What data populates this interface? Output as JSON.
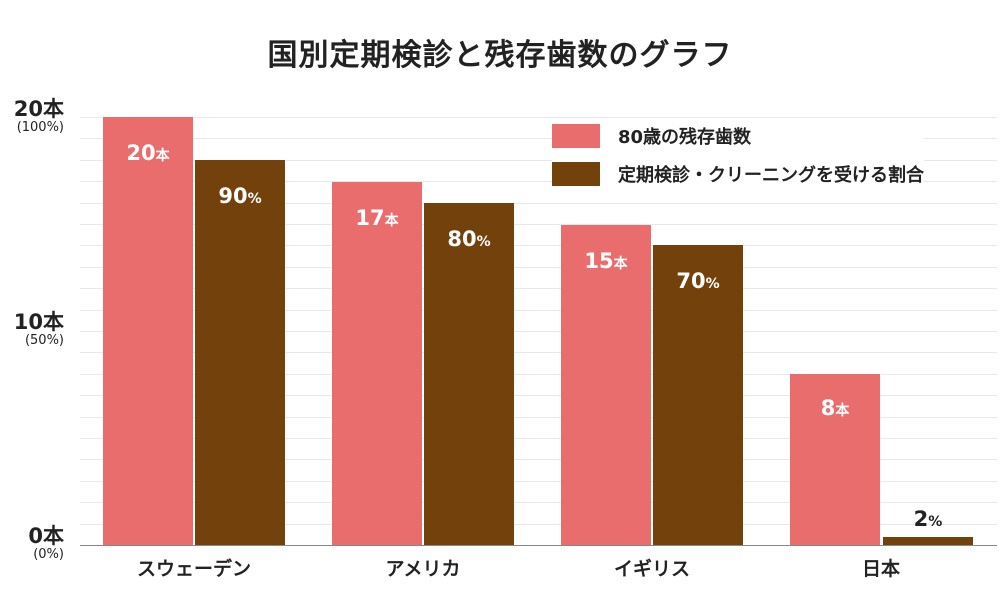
{
  "title": "国別定期検診と残存歯数のグラフ",
  "colors": {
    "teeth": "#e96d6c",
    "checkup": "#72410c",
    "grid": "#e9e9e9",
    "axis": "#888888"
  },
  "yaxis": {
    "ticks": [
      {
        "main": "20本",
        "sub": "(100%)"
      },
      {
        "main": "10本",
        "sub": "(50%)"
      },
      {
        "main": "0本",
        "sub": "(0%)"
      }
    ]
  },
  "legend": {
    "items": [
      {
        "label": "80歳の残存歯数"
      },
      {
        "label": "定期検診・クリーニングを受ける割合"
      }
    ]
  },
  "groups": [
    {
      "country": "スウェーデン",
      "teeth_value": "20",
      "teeth_unit": "本",
      "checkup_value": "90",
      "checkup_unit": "%"
    },
    {
      "country": "アメリカ",
      "teeth_value": "17",
      "teeth_unit": "本",
      "checkup_value": "80",
      "checkup_unit": "%"
    },
    {
      "country": "イギリス",
      "teeth_value": "15",
      "teeth_unit": "本",
      "checkup_value": "70",
      "checkup_unit": "%"
    },
    {
      "country": "日本",
      "teeth_value": "8",
      "teeth_unit": "本",
      "checkup_value": "2",
      "checkup_unit": "%"
    }
  ],
  "chart_data": {
    "type": "bar",
    "title": "国別定期検診と残存歯数のグラフ",
    "categories": [
      "スウェーデン",
      "アメリカ",
      "イギリス",
      "日本"
    ],
    "series": [
      {
        "name": "80歳の残存歯数",
        "values": [
          20,
          17,
          15,
          8
        ],
        "unit": "本",
        "color": "#e96d6c"
      },
      {
        "name": "定期検診・クリーニングを受ける割合",
        "values": [
          90,
          80,
          70,
          2
        ],
        "unit": "%",
        "color": "#72410c"
      }
    ],
    "xlabel": "",
    "ylabel": "",
    "ylim": [
      0,
      20
    ],
    "ylim_secondary": [
      0,
      100
    ],
    "yticks": [
      "0本 (0%)",
      "10本 (50%)",
      "20本 (100%)"
    ],
    "grid": true,
    "legend_position": "upper right"
  }
}
